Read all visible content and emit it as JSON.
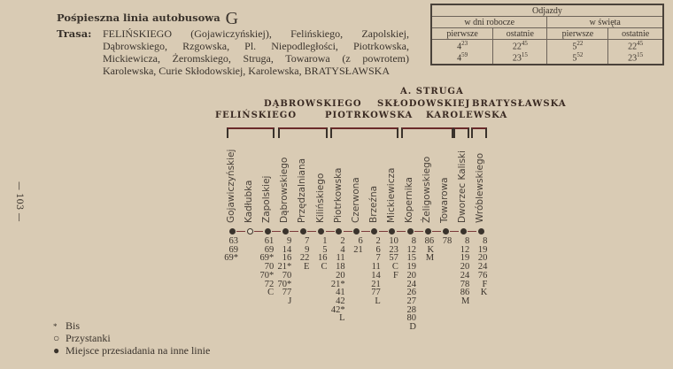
{
  "page_number": "— 103 —",
  "title": {
    "text": "Pośpieszna linia autobusowa",
    "line": "G"
  },
  "route": {
    "label": "Trasa:",
    "text": "FELIŃSKIEGO (Gojawiczyńskiej), Felińskiego, Zapolskiej, Dąbrowskiego, Rzgowska, Pl. Niepodległości, Piotrkowska, Mickiewicza, Żeromskiego, Struga, Towarowa (z powrotem) Karolewska, Curie Skłodowskiej, Karolewska, BRATYSŁAWSKA"
  },
  "departures": {
    "title": "Odjazdy",
    "groups": [
      "w dni robocze",
      "w święta"
    ],
    "columns": [
      "pierwsze",
      "ostatnie",
      "pierwsze",
      "ostatnie"
    ],
    "rows": [
      [
        {
          "h": "4",
          "m": "23"
        },
        {
          "h": "22",
          "m": "45"
        },
        {
          "h": "5",
          "m": "22"
        },
        {
          "h": "22",
          "m": "45"
        }
      ],
      [
        {
          "h": "4",
          "m": "59"
        },
        {
          "h": "23",
          "m": "15"
        },
        {
          "h": "5",
          "m": "52"
        },
        {
          "h": "23",
          "m": "15"
        }
      ]
    ]
  },
  "streets": [
    "FELIŃSKIEGO",
    "DĄBROWSKIEGO",
    "PIOTRKOWSKA",
    "A. STRUGA",
    "SKŁODOWSKIEJ",
    "KAROLEWSKA",
    "BRATYSŁAWSKA"
  ],
  "stops": [
    {
      "name": "Gojawiczyńskiej",
      "type": "transfer",
      "lines": [
        "63",
        "69",
        "69*"
      ]
    },
    {
      "name": "Kadłubka",
      "type": "stop",
      "lines": []
    },
    {
      "name": "Zapolskiej",
      "type": "transfer",
      "lines": [
        "61",
        "69",
        "69*",
        "70",
        "70*",
        "72",
        "C"
      ]
    },
    {
      "name": "Dąbrowskiego",
      "type": "transfer",
      "lines": [
        "9",
        "14",
        "16",
        "21*",
        "70",
        "70*",
        "77",
        "J"
      ]
    },
    {
      "name": "Przędzalniana",
      "type": "transfer",
      "lines": [
        "7",
        "9",
        "22",
        "E"
      ]
    },
    {
      "name": "Kilińskiego",
      "type": "transfer",
      "lines": [
        "1",
        "5",
        "16",
        "C"
      ]
    },
    {
      "name": "Piotrkowska",
      "type": "transfer",
      "lines": [
        "2",
        "4",
        "11",
        "18",
        "20",
        "21*",
        "41",
        "42",
        "42*",
        "L"
      ]
    },
    {
      "name": "Czerwona",
      "type": "transfer",
      "lines": [
        "6",
        "21"
      ]
    },
    {
      "name": "Brzeźna",
      "type": "transfer",
      "lines": [
        "2",
        "6",
        "7",
        "11",
        "14",
        "21",
        "77",
        "L"
      ]
    },
    {
      "name": "Mickiewicza",
      "type": "transfer",
      "lines": [
        "10",
        "23",
        "57",
        "C",
        "F"
      ]
    },
    {
      "name": "Kopernika",
      "type": "transfer",
      "lines": [
        "8",
        "12",
        "15",
        "19",
        "20",
        "24",
        "26",
        "27",
        "28",
        "80",
        "D"
      ]
    },
    {
      "name": "Żeligowskiego",
      "type": "transfer",
      "lines": [
        "86",
        "K",
        "M"
      ]
    },
    {
      "name": "Towarowa",
      "type": "transfer",
      "lines": [
        "78"
      ]
    },
    {
      "name": "Dworzec Kaliski",
      "type": "transfer",
      "lines": [
        "8",
        "12",
        "19",
        "20",
        "24",
        "78",
        "86",
        "M"
      ]
    },
    {
      "name": "Wróblewskiego",
      "type": "transfer",
      "lines": [
        "8",
        "19",
        "20",
        "24",
        "76",
        "F",
        "K"
      ]
    }
  ],
  "legend": [
    {
      "symbol": "*",
      "label": "Bis"
    },
    {
      "symbol": "○",
      "label": "Przystanki"
    },
    {
      "symbol": "●",
      "label": "Miejsce przesiadania na inne linie"
    }
  ]
}
